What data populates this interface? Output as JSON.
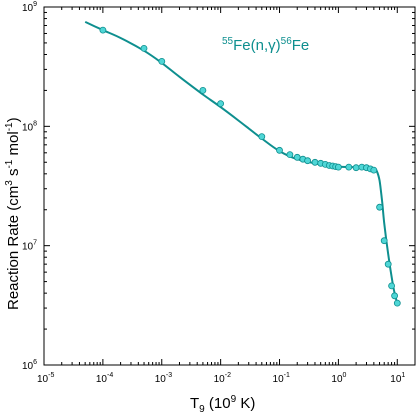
{
  "colors": {
    "series": "#0e8f8f",
    "marker_fill": "#4fd6d6",
    "axis": "#000000"
  },
  "chart_data": {
    "type": "scatter",
    "title": "",
    "annotation": {
      "base1": "55",
      "mid": "Fe(n,γ)",
      "base2": "56",
      "tail": "Fe"
    },
    "xlabel": {
      "main": "T",
      "sub": "9",
      "paren_open": " (10",
      "sup": "9",
      "paren_close": " K)"
    },
    "ylabel": {
      "main": "Reaction Rate (cm",
      "sup1": "3",
      "mid": " s",
      "sup2": "-1",
      "mid2": " mol",
      "sup3": "-1",
      "end": ")"
    },
    "xscale": "log",
    "yscale": "log",
    "xlim": [
      1e-05,
      20
    ],
    "ylim": [
      1000000.0,
      1000000000.0
    ],
    "x_ticks": [
      {
        "base": "10",
        "exp": "-5"
      },
      {
        "base": "10",
        "exp": "-4"
      },
      {
        "base": "10",
        "exp": "-3"
      },
      {
        "base": "10",
        "exp": "-2"
      },
      {
        "base": "10",
        "exp": "-1"
      },
      {
        "base": "10",
        "exp": "0"
      },
      {
        "base": "10",
        "exp": "1"
      }
    ],
    "y_ticks": [
      {
        "base": "10",
        "exp": "6"
      },
      {
        "base": "10",
        "exp": "7"
      },
      {
        "base": "10",
        "exp": "8"
      },
      {
        "base": "10",
        "exp": "9"
      }
    ],
    "series": [
      {
        "type": "line",
        "x": [
          5e-05,
          0.0001,
          0.0002,
          0.0005,
          0.001,
          0.002,
          0.005,
          0.01,
          0.02,
          0.05,
          0.1,
          0.2,
          0.5,
          1.0,
          2.0,
          3.0,
          4.0,
          4.5,
          5.0,
          5.5,
          6.0,
          7.0,
          8.0,
          9.0,
          10.0
        ],
        "y": [
          750000000.0,
          640000000.0,
          550000000.0,
          430000000.0,
          340000000.0,
          260000000.0,
          185000000.0,
          145000000.0,
          112000000.0,
          79000000.0,
          62000000.0,
          53000000.0,
          48000000.0,
          46000000.0,
          45500000.0,
          46000000.0,
          44500000.0,
          42000000.0,
          35000000.0,
          24000000.0,
          15500000.0,
          8500000.0,
          5500000.0,
          4000000.0,
          3300000.0
        ]
      },
      {
        "type": "scatter",
        "x": [
          0.0001,
          0.0005,
          0.001,
          0.005,
          0.01,
          0.05,
          0.1,
          0.15,
          0.2,
          0.25,
          0.3,
          0.4,
          0.5,
          0.6,
          0.7,
          0.8,
          0.9,
          1.0,
          1.5,
          2.0,
          2.5,
          3.0,
          3.5,
          4.0,
          5.0,
          6.0,
          7.0,
          8.0,
          9.0,
          10.0
        ],
        "y": [
          640000000.0,
          450000000.0,
          350000000.0,
          200000000.0,
          155000000.0,
          82000000.0,
          63000000.0,
          58000000.0,
          55000000.0,
          53000000.0,
          51500000.0,
          50000000.0,
          49000000.0,
          48000000.0,
          47000000.0,
          46500000.0,
          46000000.0,
          45500000.0,
          45500000.0,
          45000000.0,
          45500000.0,
          45000000.0,
          44000000.0,
          43000000.0,
          21000000.0,
          11000000.0,
          7000000.0,
          4600000.0,
          3800000.0,
          3300000.0
        ]
      }
    ],
    "grid": false,
    "legend": "none"
  }
}
